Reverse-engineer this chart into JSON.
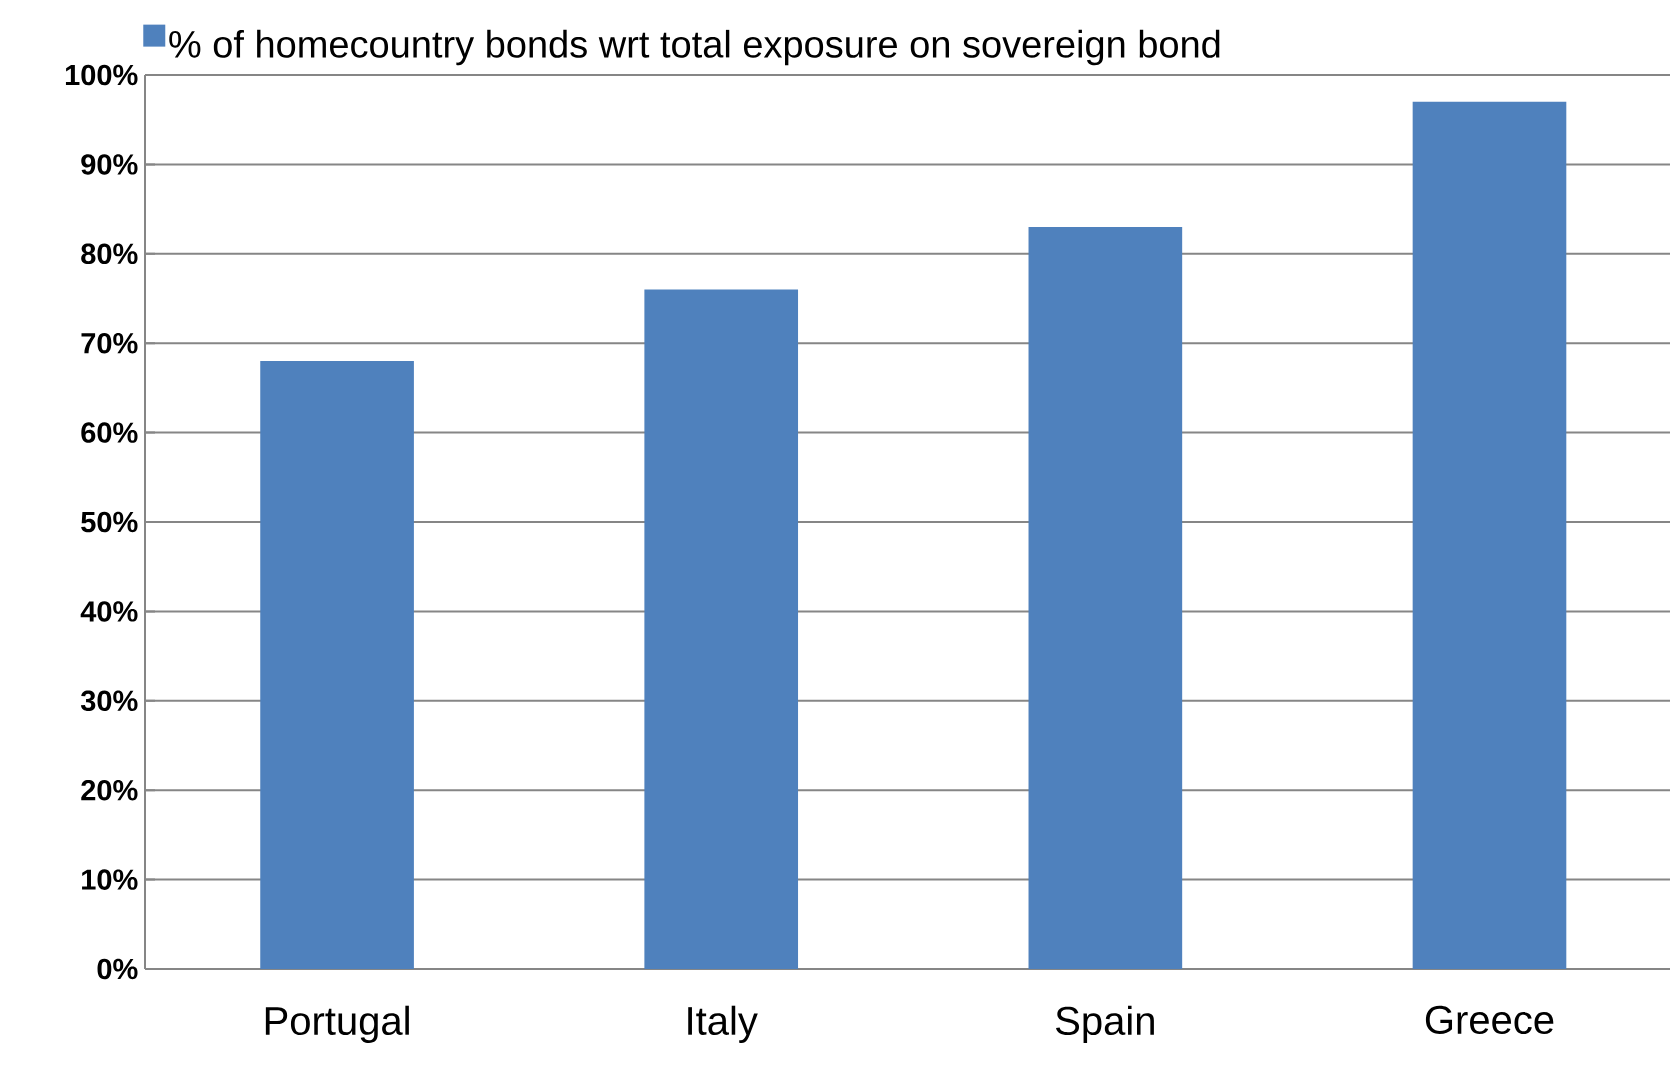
{
  "chart_data": {
    "type": "bar",
    "categories": [
      "Portugal",
      "Italy",
      "Spain",
      "Greece"
    ],
    "series": [
      {
        "name": "% of homecountry bonds wrt total exposure on sovereign bond",
        "color": "#4f81bd",
        "values": [
          68,
          76,
          83,
          97
        ]
      }
    ],
    "ylim": [
      0,
      100
    ],
    "yticks": [
      {
        "value": 0,
        "label": "0%"
      },
      {
        "value": 10,
        "label": "10%"
      },
      {
        "value": 20,
        "label": "20%"
      },
      {
        "value": 30,
        "label": "30%"
      },
      {
        "value": 40,
        "label": "40%"
      },
      {
        "value": 50,
        "label": "50%"
      },
      {
        "value": 60,
        "label": "60%"
      },
      {
        "value": 70,
        "label": "70%"
      },
      {
        "value": 80,
        "label": "80%"
      },
      {
        "value": 90,
        "label": "90%"
      },
      {
        "value": 100,
        "label": "100%"
      }
    ],
    "grid": "y",
    "legend": "top left"
  }
}
